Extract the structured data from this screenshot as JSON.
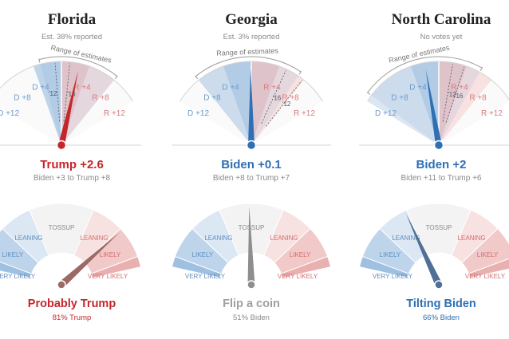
{
  "colors": {
    "dem": "#2f6fb4",
    "rep": "#c3272b",
    "gray": "#8e8e8e",
    "demLight": "#dbe7f3",
    "demMid": "#bdd4ea",
    "demStrong": "#9fc0e0",
    "repLight": "#f8e1e1",
    "repMid": "#f1c9c9",
    "repStrong": "#e9b0b0",
    "neutral": "#f3f3f3"
  },
  "states": [
    {
      "name": "Florida",
      "status": "Est. 38% reported",
      "margin": "Trump +2.6",
      "range": "Biden +3 to Trump +8",
      "leader": "rep",
      "margin_gauge": {
        "value": 2.6,
        "range_low": -3,
        "range_high": 8,
        "past_markers": [
          {
            "label": "'12",
            "value": -0.9
          },
          {
            "label": "'16",
            "value": 1.2
          }
        ],
        "range_label": "Range of estimates",
        "labels": [
          {
            "text": "D +4",
            "value": -4,
            "party": "dem"
          },
          {
            "text": "D +8",
            "value": -8,
            "party": "dem"
          },
          {
            "text": "D +12",
            "value": -12,
            "party": "dem"
          },
          {
            "text": "R +4",
            "value": 4,
            "party": "rep"
          },
          {
            "text": "R +8",
            "value": 8,
            "party": "rep"
          },
          {
            "text": "R +12",
            "value": 12,
            "party": "rep"
          }
        ]
      },
      "outcome": "Probably Trump",
      "outcome_pct": "81% Trump",
      "prob_leader": "rep",
      "prob_gauge": {
        "trump_prob": 0.81
      }
    },
    {
      "name": "Georgia",
      "status": "Est. 3% reported",
      "margin": "Biden +0.1",
      "range": "Biden +8 to Trump +7",
      "leader": "dem",
      "margin_gauge": {
        "value": -0.1,
        "range_low": -8,
        "range_high": 7,
        "past_markers": [
          {
            "label": "'16",
            "value": 5.1
          },
          {
            "label": "'12",
            "value": 7.8
          }
        ],
        "range_label": "Range of estimates",
        "labels": [
          {
            "text": "D +4",
            "value": -4,
            "party": "dem"
          },
          {
            "text": "D +8",
            "value": -8,
            "party": "dem"
          },
          {
            "text": "D +12",
            "value": -12,
            "party": "dem"
          },
          {
            "text": "R +4",
            "value": 4,
            "party": "rep"
          },
          {
            "text": "R +8",
            "value": 8,
            "party": "rep"
          },
          {
            "text": "R +12",
            "value": 12,
            "party": "rep"
          }
        ]
      },
      "outcome": "Flip a coin",
      "outcome_pct": "51% Biden",
      "prob_leader": "gray",
      "prob_gauge": {
        "trump_prob": 0.49
      }
    },
    {
      "name": "North Carolina",
      "status": "No votes yet",
      "margin": "Biden +2",
      "range": "Biden +11 to Trump +6",
      "leader": "dem",
      "margin_gauge": {
        "value": -2,
        "range_low": -11,
        "range_high": 6,
        "past_markers": [
          {
            "label": "'12",
            "value": 2
          },
          {
            "label": "'16",
            "value": 3.7
          }
        ],
        "range_label": "Range of estimates",
        "labels": [
          {
            "text": "D +4",
            "value": -4,
            "party": "dem"
          },
          {
            "text": "D +8",
            "value": -8,
            "party": "dem"
          },
          {
            "text": "D +12",
            "value": -12,
            "party": "dem"
          },
          {
            "text": "R +4",
            "value": 4,
            "party": "rep"
          },
          {
            "text": "R +8",
            "value": 8,
            "party": "rep"
          },
          {
            "text": "R +12",
            "value": 12,
            "party": "rep"
          }
        ]
      },
      "outcome": "Tilting Biden",
      "outcome_pct": "66% Biden",
      "prob_leader": "dem",
      "prob_gauge": {
        "trump_prob": 0.34
      }
    }
  ],
  "prob_labels": [
    {
      "text": "VERY LIKELY",
      "party": "dem"
    },
    {
      "text": "LIKELY",
      "party": "dem"
    },
    {
      "text": "LEANING",
      "party": "dem"
    },
    {
      "text": "TOSSUP",
      "party": "neutral"
    },
    {
      "text": "LEANING",
      "party": "rep"
    },
    {
      "text": "LIKELY",
      "party": "rep"
    },
    {
      "text": "VERY LIKELY",
      "party": "rep"
    }
  ]
}
